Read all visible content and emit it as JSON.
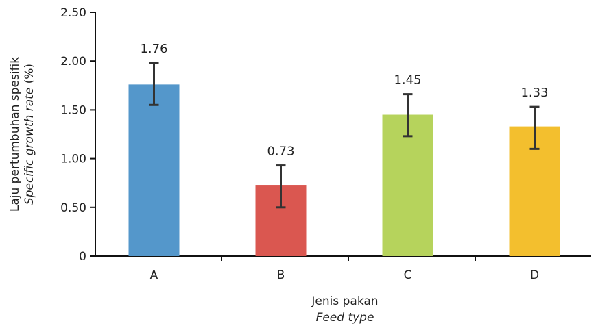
{
  "chart_data": {
    "type": "bar",
    "categories": [
      "A",
      "B",
      "C",
      "D"
    ],
    "values": [
      1.76,
      0.73,
      1.45,
      1.33
    ],
    "error_low": [
      1.55,
      0.5,
      1.23,
      1.1
    ],
    "error_high": [
      1.98,
      0.93,
      1.66,
      1.53
    ],
    "data_labels": [
      "1.76",
      "0.73",
      "1.45",
      "1.33"
    ],
    "colors": [
      "#5497cb",
      "#da5750",
      "#b6d35c",
      "#f3bf2e"
    ],
    "ylim": [
      0,
      2.5
    ],
    "yticks": [
      0,
      0.5,
      1.0,
      1.5,
      2.0,
      2.5
    ],
    "ytick_labels": [
      "0",
      "0.50",
      "1.00",
      "1.50",
      "2.00",
      "2.50"
    ],
    "ylabel": "Laju pertumbuhan spesifik",
    "ylabel_italic": "Specific growth rate",
    "ylabel_unit": " (%)",
    "xlabel": "Jenis pakan",
    "xlabel_italic": "Feed type",
    "grid": false,
    "legend": "none"
  }
}
